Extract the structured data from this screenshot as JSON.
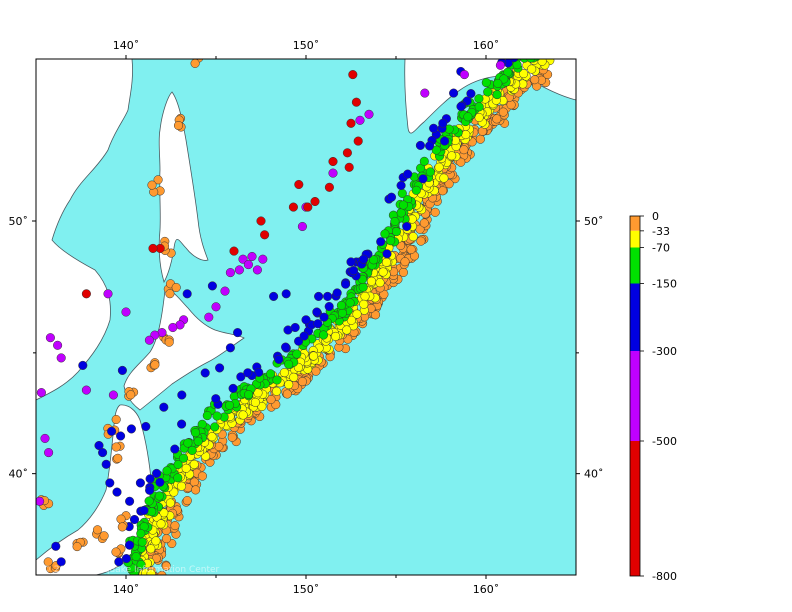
{
  "map": {
    "projection": "mercator",
    "lon_range": [
      135,
      165
    ],
    "lat_range": [
      35.5,
      55.5
    ],
    "ocean_color": "#80f0f0",
    "land_color": "#ffffff",
    "coast_color": "#4a5a60",
    "lon_ticks": [
      {
        "value": 140,
        "label": "140˚"
      },
      {
        "value": 150,
        "label": "150˚"
      },
      {
        "value": 160,
        "label": "160˚"
      }
    ],
    "lat_ticks": [
      {
        "value": 40,
        "label": "40˚"
      },
      {
        "value": 50,
        "label": "50˚"
      }
    ],
    "watermark": "© 2010 Earthquake Information Center"
  },
  "legend": {
    "colors": [
      {
        "from": 0,
        "to": 33,
        "color": "#ff9a30"
      },
      {
        "from": 33,
        "to": 70,
        "color": "#ffff00"
      },
      {
        "from": 70,
        "to": 150,
        "color": "#00e000"
      },
      {
        "from": 150,
        "to": 300,
        "color": "#0000e0"
      },
      {
        "from": 300,
        "to": 500,
        "color": "#c000ff"
      },
      {
        "from": 500,
        "to": 800,
        "color": "#e00000"
      }
    ],
    "labels": [
      "0",
      "-33",
      "-70",
      "-150",
      "-300",
      "-500",
      "-800"
    ]
  },
  "events": {
    "trench": [
      [
        141.2,
        35.5
      ],
      [
        141.5,
        37
      ],
      [
        142.3,
        38.5
      ],
      [
        143.5,
        40.2
      ],
      [
        144.8,
        41.5
      ],
      [
        146.5,
        42.6
      ],
      [
        148.5,
        43.6
      ],
      [
        150.5,
        44.8
      ],
      [
        152.5,
        46.2
      ],
      [
        154.3,
        48
      ],
      [
        156,
        50
      ],
      [
        157.5,
        51.8
      ],
      [
        159,
        53
      ],
      [
        161,
        54.3
      ],
      [
        163.5,
        55.5
      ]
    ],
    "slab_depth_bands": [
      {
        "offset": 0.7,
        "spread": 0.8,
        "count": 380,
        "color": "#ff9a30"
      },
      {
        "offset": -0.4,
        "spread": 0.8,
        "count": 420,
        "color": "#ffff00"
      },
      {
        "offset": -1.5,
        "spread": 0.6,
        "count": 300,
        "color": "#00e000"
      },
      {
        "offset": -2.6,
        "spread": 0.5,
        "count": 70,
        "color": "#0000e0"
      }
    ],
    "shallow_inland": [
      [
        139.5,
        41
      ],
      [
        139.3,
        42
      ],
      [
        140.2,
        43.3
      ],
      [
        141.5,
        44.5
      ],
      [
        142.2,
        45.5
      ],
      [
        142.5,
        47.5
      ],
      [
        142.2,
        49
      ],
      [
        141.8,
        51.3
      ],
      [
        143,
        53.5
      ],
      [
        144,
        55.5
      ],
      [
        140,
        38
      ],
      [
        139.5,
        36.5
      ],
      [
        137.5,
        37
      ],
      [
        136,
        36
      ],
      [
        135.5,
        38.8
      ],
      [
        138.5,
        37.5
      ]
    ],
    "deep_purple": [
      [
        146.5,
        48.6
      ],
      [
        146.8,
        48.4
      ],
      [
        147,
        48.7
      ],
      [
        146.3,
        48.2
      ],
      [
        147.3,
        48.2
      ],
      [
        147.6,
        48.6
      ],
      [
        145.8,
        48.1
      ],
      [
        145.5,
        47.4
      ],
      [
        145,
        46.8
      ],
      [
        144.6,
        46.4
      ],
      [
        143.2,
        46.3
      ],
      [
        143,
        46.1
      ],
      [
        142.6,
        46
      ],
      [
        142,
        45.8
      ],
      [
        141.6,
        45.7
      ],
      [
        141.3,
        45.5
      ],
      [
        140,
        46.6
      ],
      [
        139,
        47.3
      ],
      [
        135.8,
        45.6
      ],
      [
        136.2,
        45.3
      ],
      [
        136.4,
        44.8
      ],
      [
        135.3,
        43.4
      ],
      [
        135.5,
        41.5
      ],
      [
        135.7,
        40.9
      ],
      [
        135.2,
        38.8
      ],
      [
        150,
        50.5
      ],
      [
        149.8,
        49.8
      ],
      [
        151.5,
        51.7
      ],
      [
        153,
        53.5
      ],
      [
        153.5,
        53.7
      ],
      [
        156.6,
        54.4
      ],
      [
        158.8,
        55
      ],
      [
        160.8,
        55.3
      ],
      [
        137.8,
        43.5
      ],
      [
        139.3,
        43.3
      ]
    ],
    "deep_blue": [
      [
        138.5,
        41.2
      ],
      [
        138.7,
        40.9
      ],
      [
        139.2,
        41.8
      ],
      [
        138.9,
        40.4
      ],
      [
        139.1,
        39.6
      ],
      [
        139.5,
        39.2
      ],
      [
        140.8,
        39.6
      ],
      [
        141,
        38.4
      ],
      [
        140.2,
        38.8
      ],
      [
        139.7,
        41.6
      ],
      [
        140.3,
        41.9
      ],
      [
        141.1,
        42
      ],
      [
        142.1,
        42.8
      ],
      [
        143.1,
        43.3
      ],
      [
        144.4,
        44.2
      ],
      [
        145.2,
        44.4
      ],
      [
        145.8,
        45.2
      ],
      [
        146.2,
        45.8
      ],
      [
        149,
        45.9
      ],
      [
        149.4,
        46
      ],
      [
        150,
        46.3
      ],
      [
        150.6,
        46.6
      ],
      [
        151.2,
        47.2
      ],
      [
        151,
        46.4
      ],
      [
        153.2,
        48.6
      ],
      [
        154.5,
        48.8
      ],
      [
        155.6,
        49.8
      ],
      [
        156.5,
        51.5
      ],
      [
        157.7,
        52.8
      ],
      [
        158.2,
        54.4
      ],
      [
        158.6,
        55.1
      ],
      [
        157.6,
        53.4
      ],
      [
        139.8,
        44.3
      ],
      [
        137.6,
        44.5
      ],
      [
        136.1,
        36.8
      ],
      [
        136.4,
        36.1
      ],
      [
        139.6,
        36.1
      ],
      [
        144.8,
        47.6
      ],
      [
        143.4,
        47.3
      ],
      [
        148.2,
        47.2
      ],
      [
        148.9,
        47.3
      ],
      [
        150.7,
        47.2
      ],
      [
        152.5,
        48.5
      ]
    ],
    "deep_red": [
      [
        152.6,
        55
      ],
      [
        152.8,
        54.1
      ],
      [
        152.5,
        53.4
      ],
      [
        152.9,
        52.8
      ],
      [
        152.3,
        52.4
      ],
      [
        152.4,
        51.9
      ],
      [
        151.3,
        51.2
      ],
      [
        150.5,
        50.7
      ],
      [
        149.3,
        50.5
      ],
      [
        147.7,
        49.5
      ],
      [
        147.5,
        50
      ],
      [
        146,
        48.9
      ],
      [
        141.9,
        49
      ],
      [
        141.5,
        49
      ],
      [
        137.8,
        47.3
      ],
      [
        151.5,
        52.1
      ],
      [
        149.6,
        51.3
      ],
      [
        150.1,
        50.5
      ]
    ],
    "slab_seed": 7
  }
}
